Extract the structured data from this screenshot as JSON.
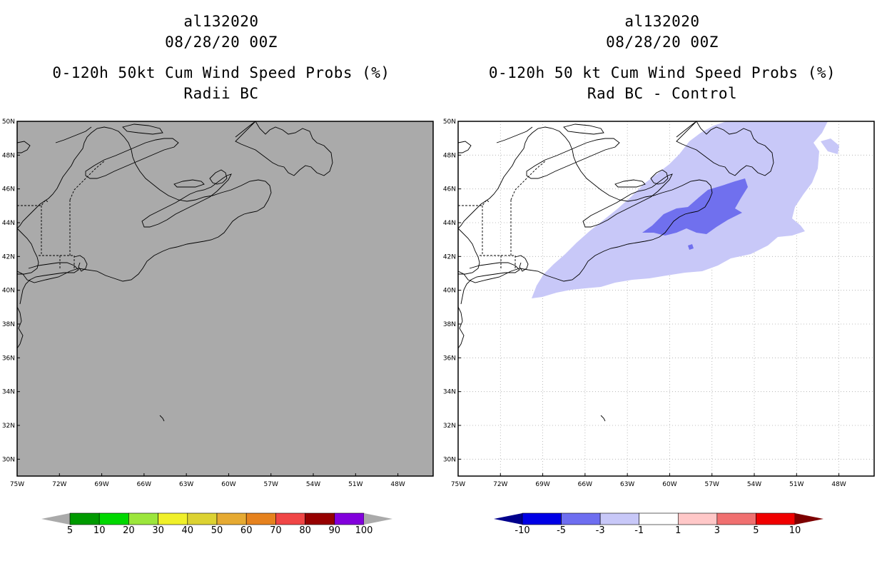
{
  "left_panel": {
    "storm_id": "al132020",
    "datetime": "08/28/20 00Z",
    "title": "0-120h 50kt Cum Wind Speed Probs (%)",
    "subtitle": "Radii BC",
    "background_color": "#aaaaaa"
  },
  "right_panel": {
    "storm_id": "al132020",
    "datetime": "08/28/20 00Z",
    "title": "0-120h 50 kt Cum Wind Speed Probs (%)",
    "subtitle": "Rad BC - Control",
    "background_color": "#ffffff"
  },
  "map_axes": {
    "lat_labels": [
      "50N",
      "48N",
      "46N",
      "44N",
      "42N",
      "40N",
      "38N",
      "36N",
      "34N",
      "32N",
      "30N"
    ],
    "lon_labels": [
      "75W",
      "72W",
      "69W",
      "66W",
      "63W",
      "60W",
      "57W",
      "54W",
      "51W",
      "48W"
    ],
    "lat_range": [
      29,
      50
    ],
    "lon_range": [
      -75,
      -45.5
    ]
  },
  "left_colorbar": {
    "labels": [
      "5",
      "10",
      "20",
      "30",
      "40",
      "50",
      "60",
      "70",
      "80",
      "90",
      "100"
    ],
    "colors": [
      "#009a00",
      "#00d800",
      "#9ce63c",
      "#f0f02a",
      "#dcd232",
      "#e6aa32",
      "#e6821e",
      "#f04646",
      "#960000",
      "#8200dc"
    ],
    "end_color": "#aaaaaa"
  },
  "right_colorbar": {
    "labels": [
      "-10",
      "-5",
      "-3",
      "-1",
      "1",
      "3",
      "5",
      "10"
    ],
    "colors": [
      "#0000e6",
      "#6e6ef0",
      "#c8c8f8",
      "#ffffff",
      "#ffc8c8",
      "#f07070",
      "#f00000"
    ],
    "low_end_color": "#00008c",
    "high_end_color": "#7d0000"
  },
  "right_fill_colors": {
    "light": "#c8c8f8",
    "medium": "#7070ee"
  }
}
